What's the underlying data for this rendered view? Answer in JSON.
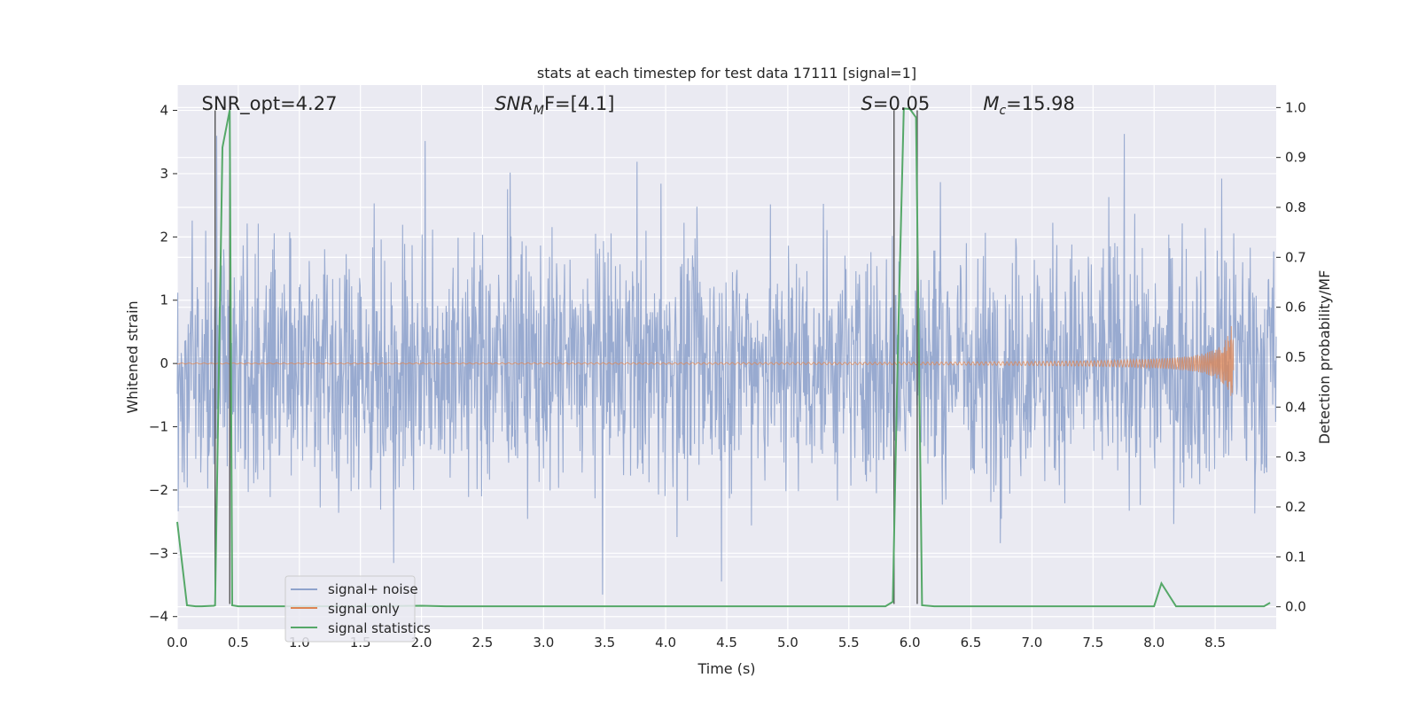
{
  "chart_data": {
    "type": "line",
    "title": "stats at each timestep for test data 17111 [signal=1]",
    "xlabel": "Time (s)",
    "ylabel_left": "Whitened strain",
    "ylabel_right": "Detection probability/MF",
    "xlim": [
      0.0,
      9.0
    ],
    "ylim_left": [
      -4.2,
      4.4
    ],
    "ylim_right": [
      -0.045,
      1.045
    ],
    "x_ticks": [
      "0.0",
      "0.5",
      "1.0",
      "1.5",
      "2.0",
      "2.5",
      "3.0",
      "3.5",
      "4.0",
      "4.5",
      "5.0",
      "5.5",
      "6.0",
      "6.5",
      "7.0",
      "7.5",
      "8.0",
      "8.5"
    ],
    "y_left_ticks": [
      "-4",
      "-3",
      "-2",
      "-1",
      "0",
      "1",
      "2",
      "3",
      "4"
    ],
    "y_right_ticks": [
      "0.0",
      "0.1",
      "0.2",
      "0.3",
      "0.4",
      "0.5",
      "0.6",
      "0.7",
      "0.8",
      "0.9",
      "1.0"
    ],
    "grid": true,
    "background": "#eaeaf2",
    "legend_position": "lower-left",
    "annotations": [
      {
        "prefix": "SNR_opt=4.27",
        "math": "",
        "sub": "",
        "suffix": "",
        "x": 0.2
      },
      {
        "prefix": "",
        "math": "SNR",
        "sub": "M",
        "suffix": "F=[4.1]",
        "x": 2.6
      },
      {
        "prefix": "",
        "math": "S",
        "sub": "",
        "suffix": "=0.05",
        "x": 5.6
      },
      {
        "prefix": "",
        "math": "M",
        "sub": "c",
        "suffix": "=15.98",
        "x": 6.6
      }
    ],
    "vertical_markers": [
      0.31,
      0.43,
      5.87,
      6.06
    ],
    "series": [
      {
        "name": "signal+ noise",
        "axis": "left",
        "color": "#8fa3cc",
        "description_values": "dense noise, approximately within -3.7 to 4.0",
        "x_range": [
          0.0,
          9.0
        ]
      },
      {
        "name": "signal only",
        "axis": "left",
        "color": "#dd8452",
        "x_range": [
          0.0,
          8.65
        ],
        "peak_amplitude": 0.75
      },
      {
        "name": "signal statistics",
        "axis": "right",
        "color": "#55a868",
        "x": [
          0.0,
          0.08,
          0.15,
          0.2,
          0.3,
          0.31,
          0.37,
          0.43,
          0.45,
          0.5,
          0.7,
          1.0,
          1.5,
          2.0,
          2.2,
          3.0,
          4.0,
          5.0,
          5.8,
          5.86,
          5.9,
          5.95,
          6.0,
          6.05,
          6.1,
          6.2,
          7.0,
          7.5,
          8.0,
          8.06,
          8.18,
          8.5,
          8.9,
          8.95
        ],
        "y": [
          0.17,
          0.003,
          0.001,
          0.001,
          0.002,
          0.003,
          0.92,
          0.995,
          0.003,
          0.001,
          0.001,
          0.001,
          0.001,
          0.002,
          0.001,
          0.001,
          0.001,
          0.001,
          0.001,
          0.01,
          0.5,
          0.998,
          0.997,
          0.98,
          0.003,
          0.001,
          0.001,
          0.001,
          0.001,
          0.047,
          0.001,
          0.001,
          0.001,
          0.008
        ]
      }
    ]
  }
}
